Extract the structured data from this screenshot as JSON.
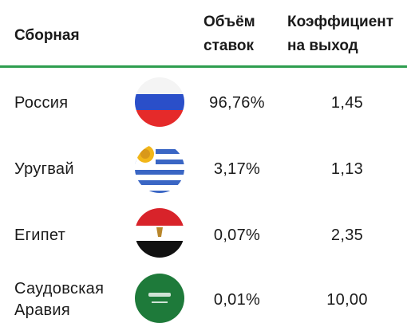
{
  "header": {
    "team": "Сборная",
    "share": [
      "Объём",
      "ставок"
    ],
    "coefficient": [
      "Коэффициент",
      "на выход"
    ]
  },
  "table": {
    "rows": [
      {
        "team": [
          "Россия"
        ],
        "share": "96,76%",
        "coefficient": "1,45"
      },
      {
        "team": [
          "Уругвай"
        ],
        "share": "3,17%",
        "coefficient": "1,13"
      },
      {
        "team": [
          "Египет"
        ],
        "share": "0,07%",
        "coefficient": "2,35"
      },
      {
        "team": [
          "Саудовская",
          "Аравия"
        ],
        "share": "0,01%",
        "coefficient": "10,00"
      }
    ]
  }
}
